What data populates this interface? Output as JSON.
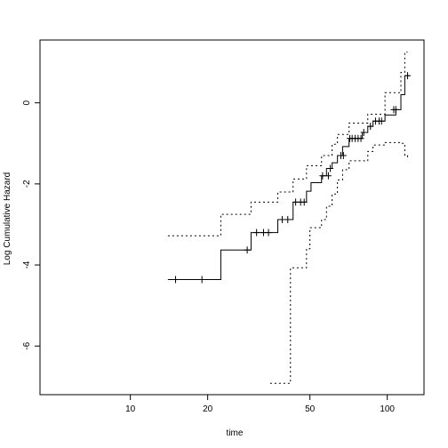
{
  "chart_data": {
    "type": "line",
    "title": "",
    "xlabel": "time",
    "ylabel": "Log Cumulative Hazard",
    "x_scale": "log",
    "xlim": [
      4.45,
      139
    ],
    "ylim": [
      -7.2,
      1.55
    ],
    "x_ticks": [
      10,
      20,
      50,
      100
    ],
    "x_tick_labels": [
      "10",
      "20",
      "50",
      "100"
    ],
    "y_ticks": [
      -6,
      -4,
      -2,
      0
    ],
    "y_tick_labels": [
      "-6",
      "-4",
      "-2",
      "0"
    ],
    "grid": false,
    "legend": "none",
    "series": [
      {
        "style": "solid",
        "steps": [
          [
            14,
            -4.36
          ],
          [
            22.5,
            -3.63
          ],
          [
            29.5,
            -3.2
          ],
          [
            37.5,
            -2.88
          ],
          [
            43,
            -2.45
          ],
          [
            48.5,
            -2.18
          ],
          [
            50.5,
            -1.97
          ],
          [
            55.5,
            -1.8
          ],
          [
            58,
            -1.62
          ],
          [
            61,
            -1.48
          ],
          [
            64,
            -1.3
          ],
          [
            67,
            -1.08
          ],
          [
            71,
            -0.88
          ],
          [
            80,
            -0.73
          ],
          [
            84,
            -0.58
          ],
          [
            88,
            -0.45
          ],
          [
            98,
            -0.3
          ],
          [
            108,
            -0.17
          ],
          [
            113,
            0.2
          ],
          [
            117,
            0.67
          ],
          [
            122,
            0.67
          ]
        ]
      },
      {
        "style": "dotted",
        "steps": [
          [
            14,
            -3.28
          ],
          [
            22.5,
            -2.75
          ],
          [
            29.5,
            -2.45
          ],
          [
            37.5,
            -2.2
          ],
          [
            43,
            -1.88
          ],
          [
            48.5,
            -1.55
          ],
          [
            55.5,
            -1.3
          ],
          [
            61,
            -1.02
          ],
          [
            64,
            -0.78
          ],
          [
            71,
            -0.5
          ],
          [
            84,
            -0.28
          ],
          [
            98,
            0.25
          ],
          [
            113,
            0.75
          ],
          [
            117,
            1.25
          ],
          [
            120,
            1.25
          ]
        ]
      },
      {
        "style": "dotted",
        "steps": [
          [
            35,
            -6.92
          ],
          [
            42,
            -4.07
          ],
          [
            48.5,
            -3.6
          ],
          [
            50,
            -3.08
          ],
          [
            55.5,
            -2.88
          ],
          [
            58,
            -2.55
          ],
          [
            61,
            -2.25
          ],
          [
            64,
            -1.9
          ],
          [
            67,
            -1.65
          ],
          [
            71,
            -1.43
          ],
          [
            84,
            -1.2
          ],
          [
            88,
            -1.04
          ],
          [
            98,
            -0.98
          ],
          [
            113,
            -1.0
          ],
          [
            117,
            -1.3
          ],
          [
            120,
            -1.38
          ]
        ]
      }
    ],
    "censor_marks": {
      "time": [
        15,
        19,
        28.5,
        31,
        33,
        34.5,
        39,
        41,
        44,
        46,
        47.5,
        56,
        59,
        60,
        66,
        67.5,
        71.5,
        73,
        75,
        77,
        79,
        81,
        86,
        90,
        93,
        95,
        106,
        108,
        120
      ],
      "value": [
        -4.36,
        -4.36,
        -3.63,
        -3.2,
        -3.2,
        -3.2,
        -2.88,
        -2.88,
        -2.45,
        -2.45,
        -2.45,
        -1.8,
        -1.8,
        -1.62,
        -1.3,
        -1.3,
        -0.88,
        -0.88,
        -0.88,
        -0.88,
        -0.88,
        -0.73,
        -0.58,
        -0.45,
        -0.45,
        -0.45,
        -0.17,
        -0.17,
        0.67
      ]
    }
  }
}
